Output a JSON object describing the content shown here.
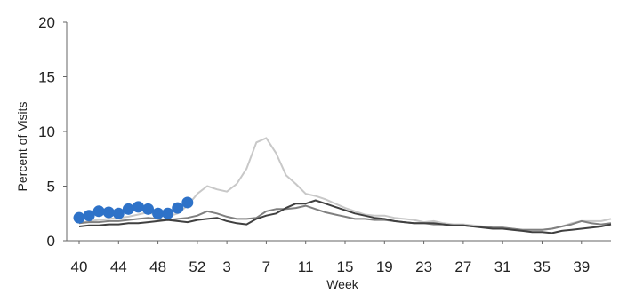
{
  "chart_data": {
    "type": "line",
    "xlabel": "Week",
    "ylabel": "Percent of Visits",
    "ylim": [
      0,
      20
    ],
    "yticks": [
      0,
      5,
      10,
      15,
      20
    ],
    "x_tick_labels": [
      "40",
      "44",
      "48",
      "52",
      "3",
      "7",
      "11",
      "15",
      "19",
      "23",
      "27",
      "31",
      "35",
      "39"
    ],
    "x_tick_positions": [
      0,
      4,
      8,
      12,
      15,
      19,
      23,
      27,
      31,
      35,
      39,
      43,
      47,
      51
    ],
    "grid": false,
    "legend": "none",
    "series": [
      {
        "color": "#c8c8c8",
        "values": [
          1.6,
          1.8,
          1.9,
          2.0,
          2.1,
          2.2,
          2.4,
          2.6,
          2.3,
          2.2,
          2.5,
          3.2,
          4.3,
          5.0,
          4.7,
          4.5,
          5.2,
          6.6,
          9.0,
          9.4,
          8.0,
          6.0,
          5.2,
          4.3,
          4.1,
          3.8,
          3.4,
          3.0,
          2.7,
          2.4,
          2.3,
          2.3,
          2.1,
          2.0,
          1.9,
          1.7,
          1.8,
          1.6,
          1.5,
          1.5,
          1.4,
          1.3,
          1.2,
          1.2,
          1.1,
          1.0,
          1.0,
          1.0,
          1.1,
          1.3,
          1.6,
          1.8,
          1.8,
          1.8,
          2.0
        ]
      },
      {
        "color": "#808080",
        "values": [
          1.6,
          1.7,
          1.7,
          1.8,
          1.8,
          1.9,
          2.0,
          2.1,
          2.0,
          1.9,
          2.0,
          2.1,
          2.3,
          2.7,
          2.5,
          2.2,
          2.0,
          2.0,
          2.1,
          2.7,
          2.9,
          2.9,
          3.0,
          3.2,
          2.9,
          2.6,
          2.4,
          2.2,
          2.0,
          2.0,
          1.9,
          1.9,
          1.8,
          1.7,
          1.6,
          1.6,
          1.5,
          1.5,
          1.4,
          1.4,
          1.3,
          1.3,
          1.2,
          1.2,
          1.1,
          1.0,
          1.0,
          1.0,
          1.1,
          1.3,
          1.5,
          1.8,
          1.6,
          1.5,
          1.6
        ]
      },
      {
        "color": "#404040",
        "values": [
          1.3,
          1.4,
          1.4,
          1.5,
          1.5,
          1.6,
          1.6,
          1.7,
          1.8,
          1.9,
          1.8,
          1.7,
          1.9,
          2.0,
          2.1,
          1.8,
          1.6,
          1.5,
          2.0,
          2.3,
          2.5,
          3.0,
          3.4,
          3.4,
          3.7,
          3.4,
          3.1,
          2.8,
          2.5,
          2.3,
          2.1,
          2.0,
          1.8,
          1.7,
          1.6,
          1.6,
          1.6,
          1.5,
          1.4,
          1.4,
          1.3,
          1.2,
          1.1,
          1.1,
          1.0,
          0.9,
          0.8,
          0.8,
          0.7,
          0.9,
          1.0,
          1.1,
          1.2,
          1.3,
          1.5
        ]
      },
      {
        "color": "#2e72c8",
        "marker": "circle",
        "values": [
          2.1,
          2.3,
          2.7,
          2.6,
          2.5,
          2.9,
          3.1,
          2.9,
          2.5,
          2.5,
          3.0,
          3.5
        ]
      }
    ]
  }
}
